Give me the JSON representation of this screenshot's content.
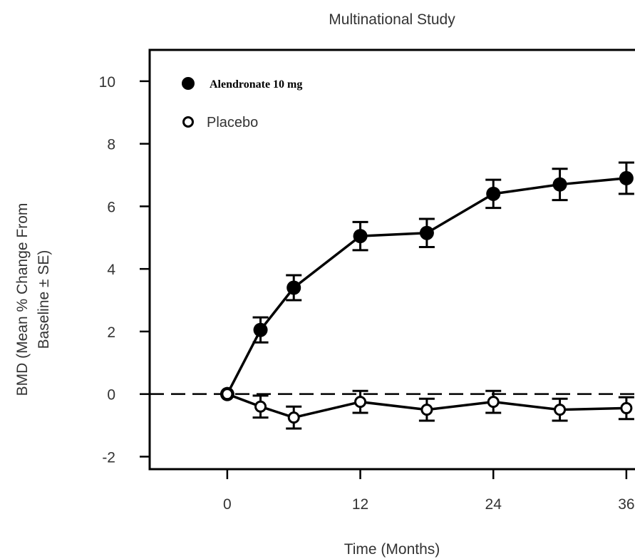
{
  "chart_data": {
    "type": "line",
    "title": "Multinational Study",
    "xlabel": "Time (Months)",
    "ylabel_line1": "BMD (Mean % Change From",
    "ylabel_line2": "Baseline ± SE)",
    "xlim": [
      -7,
      38
    ],
    "ylim": [
      -2.4,
      11
    ],
    "xticks": [
      0,
      12,
      24,
      36
    ],
    "yticks": [
      -2,
      0,
      2,
      4,
      6,
      8,
      10
    ],
    "reference_line": {
      "y": 0,
      "style": "dashed"
    },
    "legend_position": "top-left",
    "series": [
      {
        "name": "Alendronate 10 mg",
        "marker": "filled-circle",
        "color": "#000000",
        "x": [
          0,
          3,
          6,
          12,
          18,
          24,
          30,
          36
        ],
        "y": [
          0,
          2.05,
          3.4,
          5.05,
          5.15,
          6.4,
          6.7,
          6.9
        ],
        "se": [
          0,
          0.4,
          0.4,
          0.45,
          0.45,
          0.45,
          0.5,
          0.5
        ]
      },
      {
        "name": "Placebo",
        "marker": "open-circle",
        "color": "#000000",
        "x": [
          0,
          3,
          6,
          12,
          18,
          24,
          30,
          36
        ],
        "y": [
          0,
          -0.4,
          -0.75,
          -0.25,
          -0.5,
          -0.25,
          -0.5,
          -0.45
        ],
        "se": [
          0,
          0.35,
          0.35,
          0.35,
          0.35,
          0.35,
          0.35,
          0.35
        ]
      }
    ]
  }
}
